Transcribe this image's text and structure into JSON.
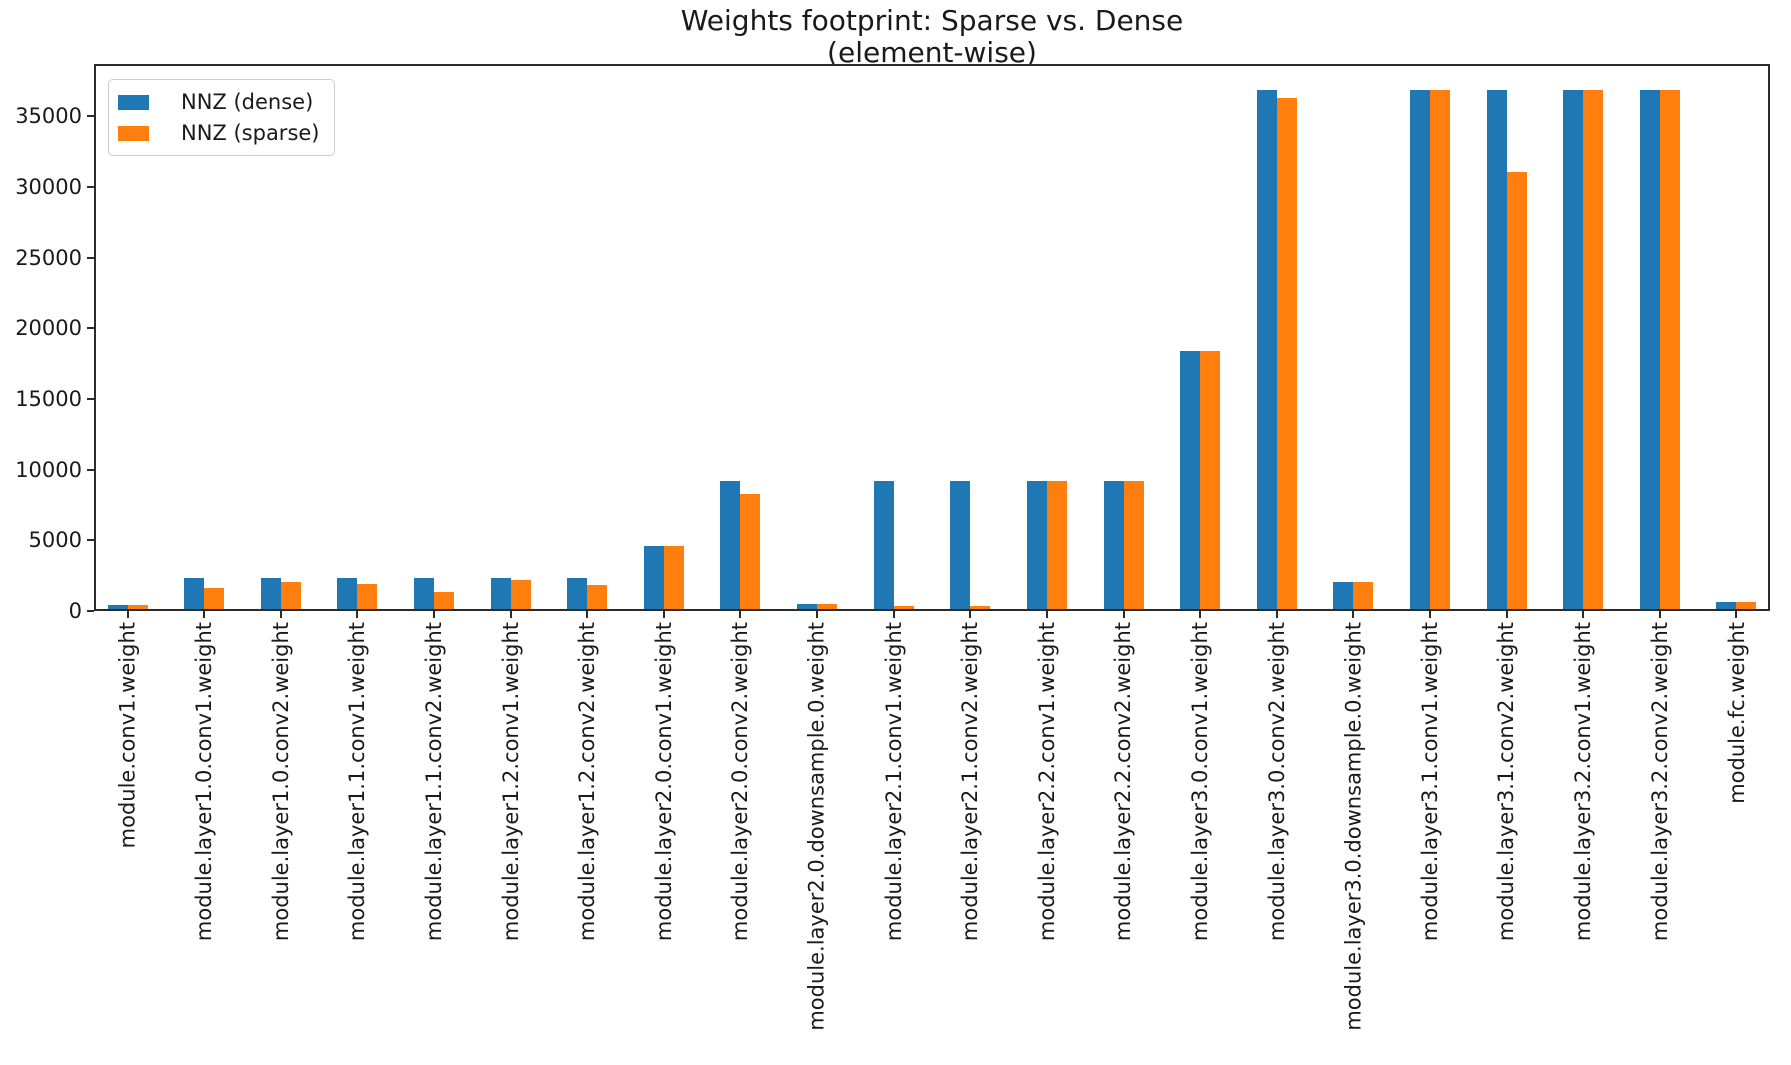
{
  "chart_data": {
    "type": "bar",
    "title": "Weights footprint: Sparse vs. Dense",
    "subtitle": "(element-wise)",
    "categories": [
      "module.conv1.weight",
      "module.layer1.0.conv1.weight",
      "module.layer1.0.conv2.weight",
      "module.layer1.1.conv1.weight",
      "module.layer1.1.conv2.weight",
      "module.layer1.2.conv1.weight",
      "module.layer1.2.conv2.weight",
      "module.layer2.0.conv1.weight",
      "module.layer2.0.conv2.weight",
      "module.layer2.0.downsample.0.weight",
      "module.layer2.1.conv1.weight",
      "module.layer2.1.conv2.weight",
      "module.layer2.2.conv1.weight",
      "module.layer2.2.conv2.weight",
      "module.layer3.0.conv1.weight",
      "module.layer3.0.conv2.weight",
      "module.layer3.0.downsample.0.weight",
      "module.layer3.1.conv1.weight",
      "module.layer3.1.conv2.weight",
      "module.layer3.2.conv1.weight",
      "module.layer3.2.conv2.weight",
      "module.fc.weight"
    ],
    "series": [
      {
        "name": "NNZ (dense)",
        "color": "#1f77b4",
        "values": [
          432,
          2304,
          2304,
          2304,
          2304,
          2304,
          2304,
          4608,
          9216,
          512,
          9216,
          9216,
          9216,
          9216,
          18432,
          36864,
          2048,
          36864,
          36864,
          36864,
          36864,
          640
        ]
      },
      {
        "name": "NNZ (sparse)",
        "color": "#ff7f0e",
        "values": [
          432,
          1610,
          2060,
          1930,
          1380,
          2230,
          1850,
          4608,
          8310,
          512,
          370,
          370,
          9216,
          9216,
          18432,
          36300,
          2048,
          36864,
          31100,
          36864,
          36864,
          640
        ]
      }
    ],
    "xlabel": "",
    "ylabel": "",
    "ylim": [
      0,
      38710
    ],
    "yticks": [
      0,
      5000,
      10000,
      15000,
      20000,
      25000,
      30000,
      35000
    ],
    "legend_position": "upper left",
    "grid": false
  }
}
